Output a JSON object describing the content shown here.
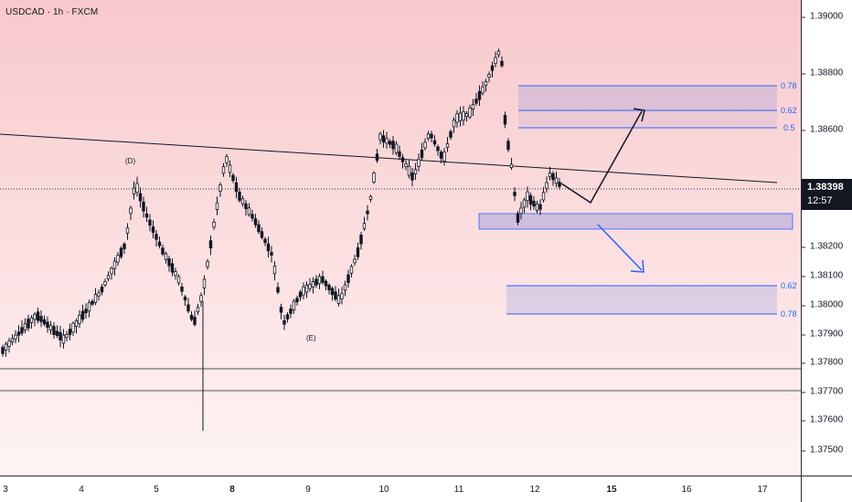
{
  "symbol": "USDCAD · 1h · FXCM",
  "colors": {
    "bull": "#ffffff",
    "bear": "#131722",
    "fib": "#2962ff",
    "zone": "rgba(106,120,220,0.20)",
    "arrow_up": "#131722",
    "arrow_down": "#2962ff"
  },
  "price_axis": {
    "ticks": [
      "1.39000",
      "1.38800",
      "1.38600",
      "1.38400",
      "1.38200",
      "1.38100",
      "1.38000",
      "1.37900",
      "1.37800",
      "1.37700",
      "1.37600",
      "1.37500"
    ],
    "current_price": "1.38398",
    "countdown": "12:57"
  },
  "time_axis": {
    "ticks": [
      {
        "label": "3",
        "bold": false
      },
      {
        "label": "4",
        "bold": false
      },
      {
        "label": "5",
        "bold": false
      },
      {
        "label": "8",
        "bold": true
      },
      {
        "label": "9",
        "bold": false
      },
      {
        "label": "10",
        "bold": false
      },
      {
        "label": "11",
        "bold": false
      },
      {
        "label": "12",
        "bold": false
      },
      {
        "label": "15",
        "bold": true
      },
      {
        "label": "16",
        "bold": false
      },
      {
        "label": "17",
        "bold": false
      }
    ]
  },
  "annotations": {
    "wave_d": "(D)",
    "wave_e": "(E)"
  },
  "fib_upper": {
    "levels": [
      "0.78",
      "0.62",
      "0.5"
    ]
  },
  "fib_lower": {
    "levels": [
      "0.62",
      "0.78"
    ]
  }
}
